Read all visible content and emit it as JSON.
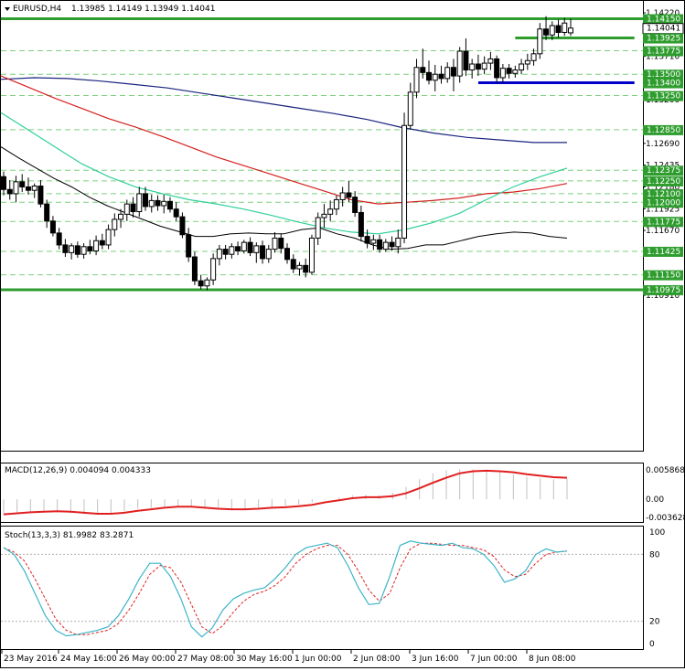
{
  "header": {
    "symbol": "EURUSD,H4",
    "ohlc": "1.13985 1.14149 1.13949 1.14041"
  },
  "colors": {
    "bull_body": "#ffffff",
    "bear_body": "#000000",
    "ma_fast": "#000000",
    "ma_mid": "#2ecf9a",
    "ma_slow": "#d42020",
    "ma_long": "#1a237e",
    "level_green": "#2e9d2e",
    "level_blue": "#0000c8",
    "dashed_green": "#7fd07f",
    "macd_signal": "#e02020",
    "macd_hist": "#c0c0c0",
    "stoch_main": "#3cb4c8",
    "stoch_signal": "#e02020"
  },
  "chart_data": [
    {
      "type": "candlestick",
      "title": "EURUSD,H4",
      "ylim": [
        1.091,
        1.1422
      ],
      "price_ticks": [
        "1.14220",
        "1.13710",
        "1.13200",
        "1.12690",
        "1.12435",
        "1.12180",
        "1.11925",
        "1.11670",
        "1.10910"
      ],
      "price_labels": [
        {
          "value": 1.1415,
          "text": "1.14150",
          "style": "level",
          "y_value": 1.1415
        },
        {
          "value": 1.14041,
          "text": "1.14041",
          "style": "current",
          "y_value": 1.14041
        },
        {
          "value": 1.13925,
          "text": "1.13925",
          "style": "green",
          "y_value": 1.13925
        },
        {
          "value": 1.13775,
          "text": "1.13775",
          "style": "green",
          "y_value": 1.13775
        },
        {
          "value": 1.135,
          "text": "1.13500",
          "style": "green",
          "y_value": 1.135
        },
        {
          "value": 1.134,
          "text": "1.13400",
          "style": "green",
          "y_value": 1.134
        },
        {
          "value": 1.1325,
          "text": "1.13250",
          "style": "green",
          "y_value": 1.1325
        },
        {
          "value": 1.1285,
          "text": "1.12850",
          "style": "green",
          "y_value": 1.1285
        },
        {
          "value": 1.12375,
          "text": "1.12375",
          "style": "green",
          "y_value": 1.12375
        },
        {
          "value": 1.1225,
          "text": "1.12250",
          "style": "green",
          "y_value": 1.1225
        },
        {
          "value": 1.121,
          "text": "1.12100",
          "style": "green",
          "y_value": 1.121
        },
        {
          "value": 1.12,
          "text": "1.12000",
          "style": "green",
          "y_value": 1.12
        },
        {
          "value": 1.11775,
          "text": "1.11775",
          "style": "green",
          "y_value": 1.11775
        },
        {
          "value": 1.11425,
          "text": "1.11425",
          "style": "green",
          "y_value": 1.11425
        },
        {
          "value": 1.1115,
          "text": "1.11150",
          "style": "green",
          "y_value": 1.1115
        },
        {
          "value": 1.10975,
          "text": "1.10975",
          "style": "level",
          "y_value": 1.10975
        }
      ],
      "candles": [
        [
          1.123,
          1.1236,
          1.1208,
          1.1215
        ],
        [
          1.1215,
          1.1226,
          1.1203,
          1.121
        ],
        [
          1.121,
          1.1231,
          1.12,
          1.1224
        ],
        [
          1.1224,
          1.1233,
          1.1212,
          1.1218
        ],
        [
          1.1218,
          1.1229,
          1.1209,
          1.1214
        ],
        [
          1.1214,
          1.1222,
          1.1205,
          1.1219
        ],
        [
          1.1219,
          1.1226,
          1.1194,
          1.1198
        ],
        [
          1.1198,
          1.1203,
          1.117,
          1.1178
        ],
        [
          1.1178,
          1.1184,
          1.116,
          1.1164
        ],
        [
          1.1164,
          1.117,
          1.1145,
          1.115
        ],
        [
          1.115,
          1.1157,
          1.1136,
          1.1141
        ],
        [
          1.1141,
          1.1152,
          1.1133,
          1.1149
        ],
        [
          1.1149,
          1.1154,
          1.1135,
          1.1139
        ],
        [
          1.1139,
          1.1152,
          1.1134,
          1.1148
        ],
        [
          1.1148,
          1.1156,
          1.1139,
          1.1143
        ],
        [
          1.1143,
          1.1161,
          1.1138,
          1.1155
        ],
        [
          1.1155,
          1.1163,
          1.1145,
          1.115
        ],
        [
          1.115,
          1.1174,
          1.1145,
          1.1168
        ],
        [
          1.1168,
          1.1187,
          1.116,
          1.118
        ],
        [
          1.118,
          1.1192,
          1.117,
          1.1186
        ],
        [
          1.1186,
          1.1203,
          1.1178,
          1.1198
        ],
        [
          1.1198,
          1.1206,
          1.1182,
          1.1189
        ],
        [
          1.1189,
          1.1218,
          1.1183,
          1.121
        ],
        [
          1.121,
          1.1218,
          1.119,
          1.1195
        ],
        [
          1.1195,
          1.1209,
          1.1188,
          1.1202
        ],
        [
          1.1202,
          1.1208,
          1.119,
          1.1196
        ],
        [
          1.1196,
          1.1209,
          1.1187,
          1.1201
        ],
        [
          1.1201,
          1.1206,
          1.1188,
          1.1192
        ],
        [
          1.1192,
          1.12,
          1.1178,
          1.1183
        ],
        [
          1.1183,
          1.1188,
          1.1158,
          1.1162
        ],
        [
          1.1162,
          1.117,
          1.113,
          1.1136
        ],
        [
          1.1136,
          1.1142,
          1.1103,
          1.1108
        ],
        [
          1.1108,
          1.1115,
          1.1098,
          1.1102
        ],
        [
          1.1102,
          1.1112,
          1.1097,
          1.1109
        ],
        [
          1.1109,
          1.114,
          1.1103,
          1.1134
        ],
        [
          1.1134,
          1.115,
          1.1126,
          1.1145
        ],
        [
          1.1145,
          1.115,
          1.1133,
          1.1139
        ],
        [
          1.1139,
          1.1152,
          1.1134,
          1.1148
        ],
        [
          1.1148,
          1.1154,
          1.1138,
          1.1143
        ],
        [
          1.1143,
          1.1156,
          1.114,
          1.1153
        ],
        [
          1.1153,
          1.1159,
          1.1137,
          1.1141
        ],
        [
          1.1141,
          1.1153,
          1.1129,
          1.1149
        ],
        [
          1.1149,
          1.1155,
          1.1128,
          1.1134
        ],
        [
          1.1134,
          1.115,
          1.1129,
          1.1145
        ],
        [
          1.1145,
          1.1165,
          1.1141,
          1.1158
        ],
        [
          1.1158,
          1.1163,
          1.114,
          1.1146
        ],
        [
          1.1146,
          1.1152,
          1.1128,
          1.1133
        ],
        [
          1.1133,
          1.1139,
          1.1117,
          1.1122
        ],
        [
          1.1122,
          1.113,
          1.1114,
          1.1126
        ],
        [
          1.1126,
          1.1134,
          1.1112,
          1.1118
        ],
        [
          1.1118,
          1.1162,
          1.1115,
          1.1158
        ],
        [
          1.1158,
          1.1188,
          1.115,
          1.1182
        ],
        [
          1.1182,
          1.1198,
          1.117,
          1.1186
        ],
        [
          1.1186,
          1.1202,
          1.1178,
          1.1192
        ],
        [
          1.1192,
          1.1208,
          1.1185,
          1.1203
        ],
        [
          1.1203,
          1.1218,
          1.1195,
          1.1211
        ],
        [
          1.1211,
          1.1225,
          1.12,
          1.1206
        ],
        [
          1.1206,
          1.1213,
          1.1183,
          1.1188
        ],
        [
          1.1188,
          1.1196,
          1.1154,
          1.116
        ],
        [
          1.116,
          1.1168,
          1.1146,
          1.1152
        ],
        [
          1.1152,
          1.1162,
          1.1144,
          1.1156
        ],
        [
          1.1156,
          1.1162,
          1.1141,
          1.1145
        ],
        [
          1.1145,
          1.1157,
          1.1142,
          1.1153
        ],
        [
          1.1153,
          1.116,
          1.1143,
          1.1148
        ],
        [
          1.1148,
          1.1168,
          1.114,
          1.1158
        ],
        [
          1.1158,
          1.1305,
          1.1152,
          1.129
        ],
        [
          1.129,
          1.134,
          1.1285,
          1.1329
        ],
        [
          1.1329,
          1.1368,
          1.1322,
          1.1358
        ],
        [
          1.1358,
          1.138,
          1.1345,
          1.1352
        ],
        [
          1.1352,
          1.1366,
          1.1338,
          1.1343
        ],
        [
          1.1343,
          1.1361,
          1.133,
          1.135
        ],
        [
          1.135,
          1.136,
          1.1339,
          1.1345
        ],
        [
          1.1345,
          1.1364,
          1.134,
          1.1358
        ],
        [
          1.1358,
          1.1368,
          1.133,
          1.1348
        ],
        [
          1.1348,
          1.1382,
          1.134,
          1.1377
        ],
        [
          1.1377,
          1.1392,
          1.1348,
          1.1355
        ],
        [
          1.1355,
          1.1368,
          1.1345,
          1.1362
        ],
        [
          1.1362,
          1.1373,
          1.1348,
          1.1356
        ],
        [
          1.1356,
          1.1371,
          1.135,
          1.1363
        ],
        [
          1.1363,
          1.1376,
          1.1355,
          1.1368
        ],
        [
          1.1368,
          1.1372,
          1.134,
          1.1346
        ],
        [
          1.1346,
          1.1362,
          1.134,
          1.1357
        ],
        [
          1.1357,
          1.1362,
          1.1345,
          1.1351
        ],
        [
          1.1351,
          1.136,
          1.1346,
          1.1355
        ],
        [
          1.1355,
          1.1368,
          1.135,
          1.1362
        ],
        [
          1.1362,
          1.1374,
          1.1355,
          1.1366
        ],
        [
          1.1366,
          1.138,
          1.136,
          1.1374
        ],
        [
          1.1374,
          1.141,
          1.1368,
          1.1403
        ],
        [
          1.1403,
          1.1418,
          1.139,
          1.1396
        ],
        [
          1.1396,
          1.1412,
          1.139,
          1.1407
        ],
        [
          1.1407,
          1.1414,
          1.1393,
          1.1399
        ],
        [
          1.1399,
          1.1416,
          1.1395,
          1.141
        ],
        [
          1.13985,
          1.14149,
          1.13949,
          1.14041
        ]
      ],
      "ma_fast": [
        1.1265,
        1.1252,
        1.124,
        1.1228,
        1.1218,
        1.1206,
        1.1196,
        1.1188,
        1.118,
        1.1172,
        1.1166,
        1.116,
        1.116,
        1.1163,
        1.1164,
        1.1163,
        1.1163,
        1.1168,
        1.117,
        1.1163,
        1.1158,
        1.115,
        1.1145,
        1.1146,
        1.115,
        1.115,
        1.1155,
        1.116,
        1.1163,
        1.1165,
        1.1164,
        1.116,
        1.1158
      ],
      "ma_mid": [
        1.1305,
        1.1285,
        1.1265,
        1.1245,
        1.123,
        1.1218,
        1.121,
        1.1203,
        1.1198,
        1.1192,
        1.1185,
        1.1177,
        1.117,
        1.1165,
        1.1163,
        1.1168,
        1.1176,
        1.1187,
        1.1203,
        1.1218,
        1.123,
        1.124
      ],
      "ma_slow": [
        1.1348,
        1.1335,
        1.1322,
        1.131,
        1.1298,
        1.1288,
        1.1277,
        1.1265,
        1.1253,
        1.1243,
        1.1233,
        1.1223,
        1.1213,
        1.1203,
        1.1198,
        1.12,
        1.1202,
        1.1205,
        1.121,
        1.1212,
        1.1216,
        1.1222
      ],
      "ma_long": [
        1.1344,
        1.1346,
        1.1345,
        1.1342,
        1.1338,
        1.1334,
        1.1328,
        1.1322,
        1.1316,
        1.131,
        1.1304,
        1.1297,
        1.1288,
        1.1281,
        1.1276,
        1.1273,
        1.127,
        1.127
      ],
      "levels": [
        {
          "kind": "solid",
          "value": 1.1415,
          "color": "level_green"
        },
        {
          "kind": "solid",
          "value": 1.10975,
          "color": "level_green"
        },
        {
          "kind": "segment",
          "value": 1.13925,
          "color": "level_green",
          "from_candle": 83,
          "to_candle": 97
        },
        {
          "kind": "segment",
          "value": 1.134,
          "color": "level_blue",
          "from_candle": 77,
          "to_candle": 97
        }
      ],
      "dashed_levels": [
        1.13775,
        1.135,
        1.1325,
        1.1285,
        1.12375,
        1.1225,
        1.121,
        1.12,
        1.11775,
        1.11425,
        1.1115
      ]
    },
    {
      "type": "bar",
      "title": "MACD(12,26,9) 0.004094 0.004333",
      "name": "MACD(12,26,9)",
      "ylim": [
        -0.003628,
        0.005868
      ],
      "y_ticks": [
        "0.005868",
        "0.00",
        "-0.003628"
      ],
      "signal": [
        -0.003,
        -0.0028,
        -0.0026,
        -0.0025,
        -0.0024,
        -0.0025,
        -0.0027,
        -0.0029,
        -0.0029,
        -0.0027,
        -0.0023,
        -0.002,
        -0.0017,
        -0.0015,
        -0.0015,
        -0.0017,
        -0.0019,
        -0.002,
        -0.002,
        -0.0019,
        -0.0017,
        -0.0016,
        -0.0014,
        -0.0011,
        -0.0006,
        -0.0002,
        0.0002,
        0.0004,
        0.0004,
        0.0006,
        0.0012,
        0.0022,
        0.0033,
        0.0043,
        0.0052,
        0.0056,
        0.0057,
        0.0056,
        0.0054,
        0.005,
        0.0047,
        0.0044,
        0.0043
      ],
      "hist": [
        -0.003,
        -0.0027,
        -0.0025,
        -0.0023,
        -0.0025,
        -0.0028,
        -0.003,
        -0.0031,
        -0.0029,
        -0.0024,
        -0.0019,
        -0.0017,
        -0.0015,
        -0.0014,
        -0.0016,
        -0.0019,
        -0.0021,
        -0.0021,
        -0.002,
        -0.0018,
        -0.0016,
        -0.0014,
        -0.0011,
        -0.0006,
        -0.0001,
        0.0004,
        0.0008,
        0.0009,
        0.0008,
        0.0013,
        0.0025,
        0.004,
        0.0052,
        0.0058,
        0.006,
        0.006,
        0.0058,
        0.0055,
        0.005,
        0.0045,
        0.0042,
        0.004,
        0.0041
      ]
    },
    {
      "type": "line",
      "title": "Stoch(13,3,3) 81.9982 83.2871",
      "name": "Stoch(13,3,3)",
      "ylim": [
        0,
        100
      ],
      "y_ticks": [
        "100",
        "80",
        "20",
        "0"
      ],
      "main": [
        86,
        80,
        65,
        45,
        25,
        12,
        7,
        8,
        10,
        12,
        15,
        25,
        40,
        58,
        72,
        72,
        60,
        40,
        15,
        6,
        14,
        30,
        40,
        45,
        48,
        50,
        58,
        68,
        80,
        86,
        88,
        90,
        86,
        70,
        50,
        35,
        36,
        60,
        88,
        92,
        90,
        89,
        88,
        90,
        86,
        85,
        80,
        70,
        55,
        58,
        65,
        80,
        85,
        82,
        83
      ],
      "signal": [
        86,
        82,
        74,
        58,
        40,
        22,
        12,
        8,
        8,
        10,
        12,
        18,
        30,
        45,
        62,
        70,
        68,
        55,
        35,
        15,
        9,
        16,
        28,
        38,
        44,
        47,
        52,
        60,
        72,
        80,
        85,
        88,
        88,
        80,
        65,
        48,
        38,
        45,
        68,
        85,
        90,
        90,
        89,
        88,
        88,
        86,
        84,
        78,
        66,
        60,
        62,
        72,
        80,
        82,
        83
      ]
    }
  ],
  "time_axis": [
    "23 May 2016",
    "24 May 16:00",
    "26 May 00:00",
    "27 May 08:00",
    "30 May 16:00",
    "1 Jun 00:00",
    "2 Jun 08:00",
    "3 Jun 16:00",
    "7 Jun 00:00",
    "8 Jun 08:00"
  ]
}
